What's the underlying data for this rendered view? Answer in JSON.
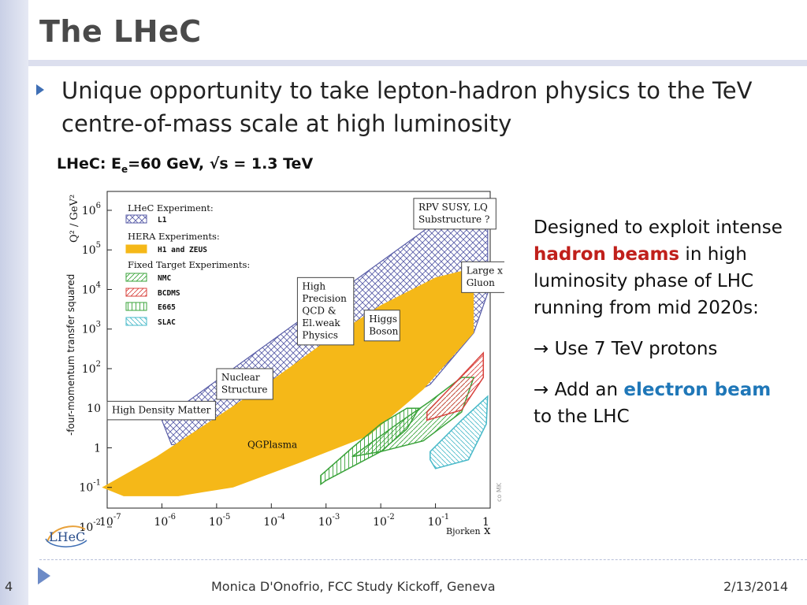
{
  "slide": {
    "title": "The LHeC",
    "bullet": "Unique opportunity to take lepton-hadron physics to the TeV centre-of-mass scale at high luminosity",
    "subhead_pre": "LHeC: E",
    "subhead_sub": "e",
    "subhead_post": "=60 GeV, √s = 1.3 TeV"
  },
  "side_text": {
    "p1_pre": "Designed to exploit intense ",
    "p1_red": "hadron beams",
    "p1_post": " in high luminosity phase of LHC running from mid 2020s:",
    "p2": "→ Use 7 TeV protons",
    "p3_pre": "→ Add an ",
    "p3_blue": "electron beam",
    "p3_post": " to the LHC"
  },
  "footer": {
    "page": "4",
    "center": "Monica D'Onofrio, FCC Study Kickoff, Geneva",
    "date": "2/13/2014"
  },
  "logo": {
    "text": "LHeC"
  },
  "chart_data": {
    "type": "area",
    "xlabel": "x",
    "xlabel_sub": "Bjorken",
    "ylabel_main": "-four-momentum transfer squared",
    "ylabel_q": "Q² / GeV²",
    "x_scale": "log",
    "y_scale": "log",
    "xlim": [
      1e-07,
      1
    ],
    "ylim": [
      0.03,
      3000000.0
    ],
    "x_ticks": [
      {
        "value": 1e-07,
        "base": "10",
        "exp": "-7"
      },
      {
        "value": 1e-06,
        "base": "10",
        "exp": "-6"
      },
      {
        "value": 1e-05,
        "base": "10",
        "exp": "-5"
      },
      {
        "value": 0.0001,
        "base": "10",
        "exp": "-4"
      },
      {
        "value": 0.001,
        "base": "10",
        "exp": "-3"
      },
      {
        "value": 0.01,
        "base": "10",
        "exp": "-2"
      },
      {
        "value": 0.1,
        "base": "10",
        "exp": "-1"
      },
      {
        "value": 1,
        "base": "1",
        "exp": ""
      }
    ],
    "y_ticks": [
      {
        "value": 1000000.0,
        "base": "10",
        "exp": "6"
      },
      {
        "value": 100000.0,
        "base": "10",
        "exp": "5"
      },
      {
        "value": 10000.0,
        "base": "10",
        "exp": "4"
      },
      {
        "value": 1000.0,
        "base": "10",
        "exp": "3"
      },
      {
        "value": 100.0,
        "base": "10",
        "exp": "2"
      },
      {
        "value": 10,
        "base": "10",
        "exp": ""
      },
      {
        "value": 1,
        "base": "1",
        "exp": ""
      },
      {
        "value": 0.1,
        "base": "10",
        "exp": "-1"
      },
      {
        "value": 0.01,
        "base": "10",
        "exp": "-2"
      }
    ],
    "legend": {
      "title1": "LHeC Experiment:",
      "title2": "HERA Experiments:",
      "title3": "Fixed Target Experiments:",
      "entries": [
        {
          "name": "L1",
          "color": "#5a5ea8",
          "pattern": "cross"
        },
        {
          "name": "H1 and ZEUS",
          "color": "#f5b818",
          "pattern": "solid"
        },
        {
          "name": "NMC",
          "color": "#3aa33a",
          "pattern": "diag"
        },
        {
          "name": "BCDMS",
          "color": "#d9433e",
          "pattern": "diag"
        },
        {
          "name": "E665",
          "color": "#3aa33a",
          "pattern": "vert"
        },
        {
          "name": "SLAC",
          "color": "#45b8c8",
          "pattern": "hatch"
        }
      ]
    },
    "series": [
      {
        "name": "L1",
        "color": "#5a5ea8",
        "pattern": "cross",
        "x": [
          1e-06,
          1e-05,
          0.0001,
          0.001,
          0.01,
          0.1,
          0.9,
          0.9,
          0.5,
          0.08,
          0.02,
          0.003,
          0.0005,
          8e-05,
          1e-05,
          1.5e-06
        ],
        "y": [
          5,
          50,
          500,
          5000,
          50000,
          500000,
          2000000,
          8000,
          800,
          40,
          15,
          8,
          5,
          3,
          1.5,
          1.2
        ]
      },
      {
        "name": "H1 and ZEUS",
        "color": "#f5b818",
        "pattern": "solid",
        "x": [
          8e-08,
          8e-07,
          1e-05,
          0.0001,
          0.001,
          0.01,
          0.1,
          0.5,
          0.5,
          0.06,
          0.006,
          0.0003,
          2e-05,
          2e-06,
          2e-07
        ],
        "y": [
          0.1,
          0.6,
          6,
          50,
          500,
          4000,
          20000,
          35000,
          800,
          30,
          2,
          0.4,
          0.1,
          0.06,
          0.06
        ]
      },
      {
        "name": "NMC",
        "color": "#3aa33a",
        "pattern": "diag",
        "x": [
          0.005,
          0.02,
          0.08,
          0.3,
          0.5,
          0.3,
          0.06,
          0.01,
          0.003
        ],
        "y": [
          1,
          4,
          15,
          60,
          60,
          8,
          1.5,
          0.8,
          0.6
        ]
      },
      {
        "name": "BCDMS",
        "color": "#d9433e",
        "pattern": "diag",
        "x": [
          0.07,
          0.25,
          0.75,
          0.75,
          0.3,
          0.07
        ],
        "y": [
          8,
          50,
          250,
          60,
          9,
          5
        ]
      },
      {
        "name": "E665",
        "color": "#3aa33a",
        "pattern": "vert",
        "x": [
          0.0008,
          0.003,
          0.01,
          0.03,
          0.05,
          0.03,
          0.01,
          0.001,
          0.0008
        ],
        "y": [
          0.2,
          1,
          4,
          10,
          10,
          3,
          0.8,
          0.15,
          0.12
        ]
      },
      {
        "name": "SLAC",
        "color": "#45b8c8",
        "pattern": "hatch",
        "x": [
          0.08,
          0.3,
          0.9,
          0.85,
          0.4,
          0.1,
          0.08
        ],
        "y": [
          0.8,
          5,
          20,
          4,
          0.5,
          0.3,
          0.5
        ]
      }
    ],
    "annotations": [
      {
        "text": [
          "RPV SUSY, LQ",
          "Substructure ?"
        ],
        "x": 0.04,
        "y": 2000000,
        "boxed": true
      },
      {
        "text": [
          "Large x",
          "Gluon"
        ],
        "x": 0.3,
        "y": 50000,
        "boxed": true
      },
      {
        "text": [
          "High",
          "Precision",
          "QCD &",
          "El.weak",
          "Physics"
        ],
        "x": 0.0003,
        "y": 20000,
        "boxed": true
      },
      {
        "text": [
          "Higgs",
          "Boson"
        ],
        "x": 0.005,
        "y": 3000,
        "boxed": true
      },
      {
        "text": [
          "Nuclear",
          "Structure"
        ],
        "x": 1e-05,
        "y": 100,
        "boxed": true
      },
      {
        "text": [
          "High Density Matter"
        ],
        "x": 1e-07,
        "y": 15,
        "boxed": true
      },
      {
        "text": [
          "QGPlasma"
        ],
        "x": 3e-05,
        "y": 2,
        "boxed": false
      },
      {
        "text": [
          "co MK"
        ],
        "x": 1,
        "y": 0.04,
        "boxed": false
      }
    ]
  }
}
